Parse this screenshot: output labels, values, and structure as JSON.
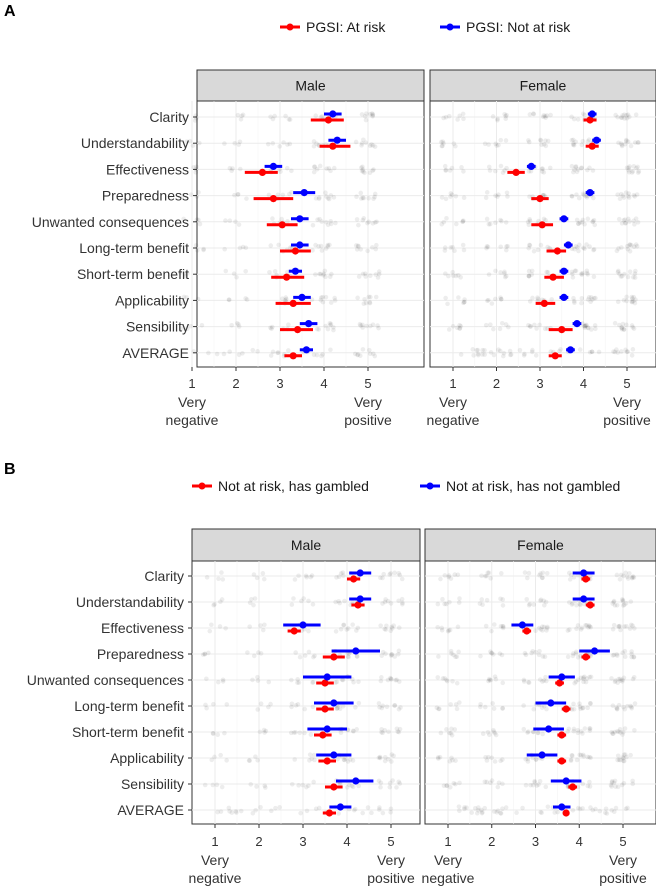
{
  "chart_data": [
    {
      "type": "scatter",
      "panel_label": "A",
      "legend": [
        {
          "name": "PGSI: At risk",
          "color": "#ff0000"
        },
        {
          "name": "PGSI: Not at risk",
          "color": "#0000ff"
        }
      ],
      "legend_position": "top",
      "facets": [
        "Male",
        "Female"
      ],
      "categories": [
        "Clarity",
        "Understandability",
        "Effectiveness",
        "Preparedness",
        "Unwanted consequences",
        "Long-term benefit",
        "Short-term benefit",
        "Applicability",
        "Sensibility",
        "AVERAGE"
      ],
      "xlim": [
        0.5,
        5.5
      ],
      "x_ticks": [
        "1",
        "2",
        "3",
        "4",
        "5"
      ],
      "x_annotations": {
        "low": [
          "Very",
          "negative"
        ],
        "high": [
          "Very",
          "positive"
        ]
      },
      "series": [
        {
          "name": "PGSI: At risk",
          "facet": "Male",
          "values": [
            4.1,
            4.2,
            2.6,
            2.85,
            3.05,
            3.35,
            3.15,
            3.3,
            3.4,
            3.3
          ],
          "ci_low": [
            3.7,
            3.9,
            2.2,
            2.4,
            2.7,
            3.0,
            2.8,
            2.9,
            3.0,
            3.1
          ],
          "ci_high": [
            4.45,
            4.6,
            2.95,
            3.3,
            3.4,
            3.7,
            3.55,
            3.7,
            3.75,
            3.5
          ]
        },
        {
          "name": "PGSI: Not at risk",
          "facet": "Male",
          "values": [
            4.2,
            4.3,
            2.85,
            3.55,
            3.45,
            3.45,
            3.35,
            3.5,
            3.65,
            3.6
          ],
          "ci_low": [
            4.0,
            4.1,
            2.65,
            3.3,
            3.25,
            3.25,
            3.2,
            3.3,
            3.45,
            3.45
          ],
          "ci_high": [
            4.4,
            4.5,
            3.05,
            3.8,
            3.65,
            3.65,
            3.5,
            3.7,
            3.85,
            3.75
          ]
        },
        {
          "name": "PGSI: At risk",
          "facet": "Female",
          "values": [
            4.15,
            4.2,
            2.45,
            3.0,
            3.05,
            3.4,
            3.3,
            3.1,
            3.5,
            3.35
          ],
          "ci_low": [
            4.0,
            4.05,
            2.25,
            2.8,
            2.8,
            3.15,
            3.1,
            2.9,
            3.2,
            3.2
          ],
          "ci_high": [
            4.3,
            4.35,
            2.65,
            3.2,
            3.3,
            3.6,
            3.55,
            3.35,
            3.75,
            3.5
          ]
        },
        {
          "name": "PGSI: Not at risk",
          "facet": "Female",
          "values": [
            4.2,
            4.3,
            2.8,
            4.15,
            3.55,
            3.65,
            3.55,
            3.55,
            3.85,
            3.7
          ],
          "ci_low": [
            4.1,
            4.2,
            2.7,
            4.05,
            3.45,
            3.55,
            3.45,
            3.45,
            3.75,
            3.6
          ],
          "ci_high": [
            4.3,
            4.4,
            2.9,
            4.25,
            3.65,
            3.75,
            3.65,
            3.65,
            3.95,
            3.8
          ]
        }
      ]
    },
    {
      "type": "scatter",
      "panel_label": "B",
      "legend": [
        {
          "name": "Not at risk, has gambled",
          "color": "#ff0000"
        },
        {
          "name": "Not at risk, has not gambled",
          "color": "#0000ff"
        }
      ],
      "legend_position": "top",
      "facets": [
        "Male",
        "Female"
      ],
      "categories": [
        "Clarity",
        "Understandability",
        "Effectiveness",
        "Preparedness",
        "Unwanted consequences",
        "Long-term benefit",
        "Short-term benefit",
        "Applicability",
        "Sensibility",
        "AVERAGE"
      ],
      "xlim": [
        0.5,
        5.5
      ],
      "x_ticks": [
        "1",
        "2",
        "3",
        "4",
        "5"
      ],
      "x_annotations": {
        "low": [
          "Very",
          "negative"
        ],
        "high": [
          "Very",
          "positive"
        ]
      },
      "series": [
        {
          "name": "Not at risk, has gambled",
          "facet": "Male",
          "values": [
            4.15,
            4.25,
            2.8,
            3.7,
            3.5,
            3.5,
            3.45,
            3.55,
            3.7,
            3.6
          ],
          "ci_low": [
            4.0,
            4.1,
            2.65,
            3.45,
            3.3,
            3.3,
            3.25,
            3.35,
            3.5,
            3.45
          ],
          "ci_high": [
            4.3,
            4.4,
            2.95,
            3.95,
            3.7,
            3.7,
            3.65,
            3.75,
            3.9,
            3.75
          ]
        },
        {
          "name": "Not at risk, has not gambled",
          "facet": "Male",
          "values": [
            4.3,
            4.3,
            3.0,
            4.2,
            3.55,
            3.7,
            3.55,
            3.7,
            4.2,
            3.85
          ],
          "ci_low": [
            4.05,
            4.05,
            2.55,
            3.65,
            3.0,
            3.25,
            3.1,
            3.3,
            3.75,
            3.6
          ],
          "ci_high": [
            4.55,
            4.55,
            3.4,
            4.75,
            4.1,
            4.15,
            4.0,
            4.1,
            4.6,
            4.1
          ]
        },
        {
          "name": "Not at risk, has gambled",
          "facet": "Female",
          "values": [
            4.15,
            4.25,
            2.8,
            4.15,
            3.55,
            3.7,
            3.6,
            3.6,
            3.85,
            3.7
          ],
          "ci_low": [
            4.05,
            4.15,
            2.7,
            4.05,
            3.45,
            3.6,
            3.5,
            3.5,
            3.75,
            3.65
          ],
          "ci_high": [
            4.25,
            4.35,
            2.9,
            4.25,
            3.65,
            3.8,
            3.7,
            3.7,
            3.95,
            3.75
          ]
        },
        {
          "name": "Not at risk, has not gambled",
          "facet": "Female",
          "values": [
            4.1,
            4.1,
            2.7,
            4.35,
            3.6,
            3.35,
            3.3,
            3.15,
            3.7,
            3.6
          ],
          "ci_low": [
            3.85,
            3.85,
            2.45,
            4.0,
            3.3,
            3.0,
            2.95,
            2.8,
            3.35,
            3.4
          ],
          "ci_high": [
            4.35,
            4.35,
            2.95,
            4.7,
            3.9,
            3.7,
            3.65,
            3.5,
            4.05,
            3.8
          ]
        }
      ]
    }
  ]
}
